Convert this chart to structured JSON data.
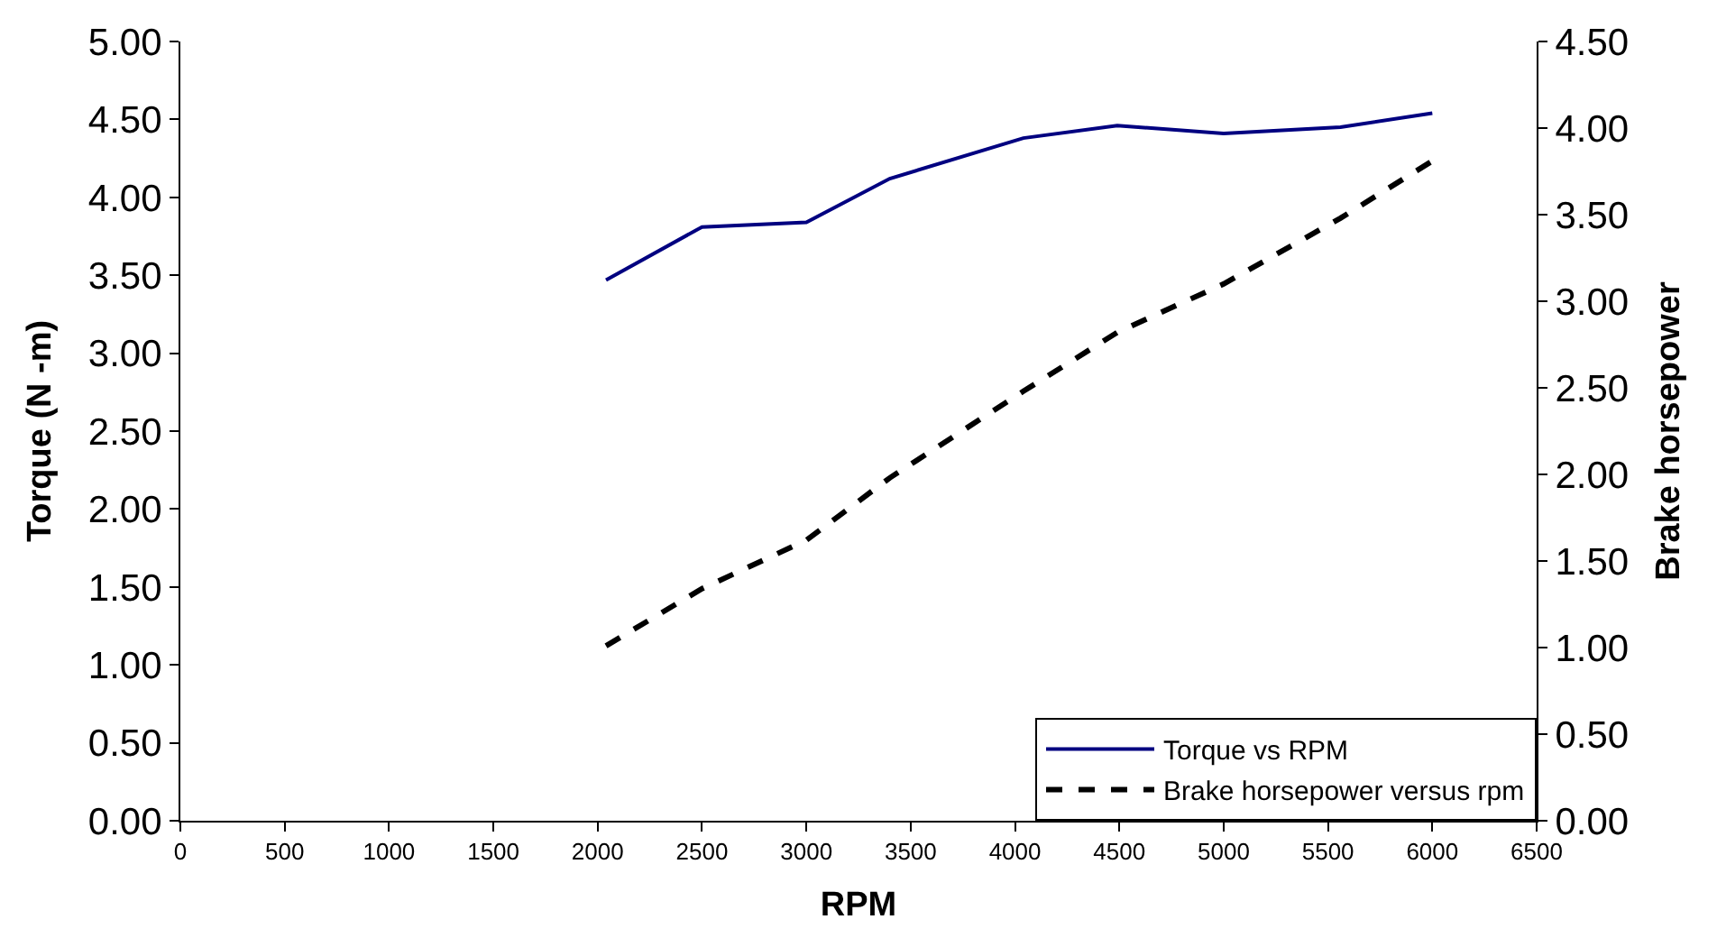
{
  "chart_data": {
    "type": "line",
    "xlabel": "RPM",
    "ylabel": "Torque (N -m)",
    "y2label": "Brake horsepower",
    "x": [
      2040,
      2500,
      3000,
      3400,
      4040,
      4490,
      5000,
      5560,
      6000
    ],
    "series": [
      {
        "name": "Torque vs RPM",
        "color": "#000080",
        "line_style": "solid",
        "values": [
          3.47,
          3.81,
          3.84,
          4.12,
          4.38,
          4.46,
          4.41,
          4.45,
          4.54
        ]
      },
      {
        "name": "Brake horsepower versus rpm",
        "color": "#000000",
        "line_style": "dashed",
        "axis": "y2",
        "values": [
          1.01,
          1.34,
          1.62,
          1.98,
          2.48,
          2.82,
          3.1,
          3.48,
          3.81
        ]
      }
    ],
    "xlim": [
      0,
      6500
    ],
    "xticks": [
      0,
      500,
      1000,
      1500,
      2000,
      2500,
      3000,
      3500,
      4000,
      4500,
      5000,
      5500,
      6000,
      6500
    ],
    "ylim": [
      0,
      5
    ],
    "yticks": [
      {
        "value": 0,
        "label": "0.00"
      },
      {
        "value": 0.5,
        "label": "0.50"
      },
      {
        "value": 1,
        "label": "1.00"
      },
      {
        "value": 1.5,
        "label": "1.50"
      },
      {
        "value": 2,
        "label": "2.00"
      },
      {
        "value": 2.5,
        "label": "2.50"
      },
      {
        "value": 3,
        "label": "3.00"
      },
      {
        "value": 3.5,
        "label": "3.50"
      },
      {
        "value": 4,
        "label": "4.00"
      },
      {
        "value": 4.5,
        "label": "4.50"
      },
      {
        "value": 5,
        "label": "5.00"
      }
    ],
    "y2lim": [
      0,
      4.5
    ],
    "y2ticks": [
      {
        "value": 0,
        "label": "0.00"
      },
      {
        "value": 0.5,
        "label": "0.50"
      },
      {
        "value": 1,
        "label": "1.00"
      },
      {
        "value": 1.5,
        "label": "1.50"
      },
      {
        "value": 2,
        "label": "2.00"
      },
      {
        "value": 2.5,
        "label": "2.50"
      },
      {
        "value": 3,
        "label": "3.00"
      },
      {
        "value": 3.5,
        "label": "3.50"
      },
      {
        "value": 4,
        "label": "4.00"
      },
      {
        "value": 4.5,
        "label": "4.50"
      }
    ],
    "legend": "bottom right",
    "marker": "none"
  }
}
